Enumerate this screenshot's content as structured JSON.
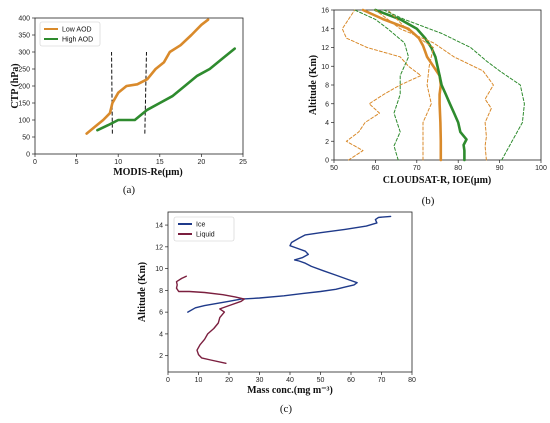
{
  "chart_data": [
    {
      "type": "line",
      "panel_label": "(a)",
      "xlabel": "MODIS-Re(μm)",
      "ylabel": "CTP (hPa)",
      "xlim": [
        0,
        25
      ],
      "ylim": [
        0,
        400
      ],
      "xticks": [
        "0",
        "5",
        "10",
        "15",
        "20",
        "25"
      ],
      "yticks": [
        "0",
        "50",
        "100",
        "150",
        "200",
        "250",
        "300",
        "350",
        "400"
      ],
      "legend_position": "top-left",
      "grid": false,
      "series": [
        {
          "name": "Low AOD",
          "color": "#d98a2b",
          "x": [
            6.2,
            7.2,
            8.2,
            9.0,
            9.3,
            10.0,
            11.0,
            12.3,
            13.5,
            14.5,
            15.5,
            16.2,
            17.5,
            18.8,
            20.0,
            20.8
          ],
          "y": [
            60,
            80,
            100,
            120,
            150,
            180,
            200,
            205,
            220,
            250,
            270,
            300,
            320,
            350,
            380,
            395
          ]
        },
        {
          "name": "High AOD",
          "color": "#2e8b2e",
          "x": [
            7.5,
            8.8,
            10.0,
            12.0,
            13.5,
            15.0,
            16.5,
            18.0,
            19.5,
            21.0,
            22.5,
            24.0
          ],
          "y": [
            70,
            85,
            100,
            100,
            130,
            150,
            170,
            200,
            230,
            250,
            280,
            310
          ]
        }
      ],
      "annotations": [
        {
          "type": "dashed-vline",
          "x": [
            9.3,
            9.2
          ],
          "y": [
            60,
            300
          ]
        },
        {
          "type": "dashed-vline",
          "x": [
            13.2,
            13.4
          ],
          "y": [
            60,
            300
          ]
        }
      ]
    },
    {
      "type": "line",
      "panel_label": "(b)",
      "xlabel": "CLOUDSAT-R, IOE(μm)",
      "ylabel": "Altitude (Km)",
      "xlim": [
        50,
        100
      ],
      "ylim": [
        0,
        16
      ],
      "xticks": [
        "50",
        "60",
        "70",
        "80",
        "90",
        "100"
      ],
      "yticks": [
        "0",
        "2",
        "4",
        "6",
        "8",
        "10",
        "12",
        "14",
        "16"
      ],
      "grid": false,
      "series": [
        {
          "color": "#d98a2b",
          "style": "solid",
          "x": [
            75.8,
            75.8,
            75.7,
            75.5,
            75.5,
            75.8,
            75.5,
            74.0,
            72.5,
            72.0,
            71.5,
            70.5,
            68.0,
            62.0,
            57.0
          ],
          "y": [
            0,
            2,
            4,
            6,
            7,
            8,
            9,
            10,
            11,
            11.6,
            12.2,
            13,
            14,
            15,
            16
          ]
        },
        {
          "color": "#2e8b2e",
          "style": "solid",
          "x": [
            81.5,
            81.5,
            81.3,
            82.0,
            80.5,
            80.0,
            79.0,
            78.0,
            77.0,
            76.0,
            75.5,
            75.0,
            74.5,
            73.5,
            72.0,
            70.0,
            66.0,
            60.0
          ],
          "y": [
            0,
            1,
            1.6,
            2.2,
            3.0,
            4.0,
            5.0,
            6.0,
            7.0,
            8.0,
            9.0,
            10.0,
            11.0,
            12.0,
            13.0,
            14.0,
            15.0,
            16.0
          ]
        },
        {
          "color": "#d98a2b",
          "style": "dashed",
          "x": [
            53.5,
            57.0,
            53.0,
            56.0,
            57.5,
            61.0,
            58.5,
            62.0,
            66.0,
            71.0,
            68.0,
            66.0,
            58.0,
            53.0,
            52.0,
            55.0
          ],
          "y": [
            0,
            1.0,
            2.0,
            3.0,
            4.0,
            5.0,
            6.0,
            7.0,
            8.0,
            9.0,
            10.0,
            11.0,
            12.0,
            13.0,
            14.0,
            16.0
          ]
        },
        {
          "color": "#d98a2b",
          "style": "dashed",
          "x": [
            71.5,
            71.5,
            71.5,
            73.5,
            72.5,
            73.0,
            74.0,
            70.5,
            67.5,
            63.0
          ],
          "y": [
            0,
            2,
            4,
            6,
            8,
            10,
            12,
            13,
            14,
            16
          ]
        },
        {
          "color": "#d98a2b",
          "style": "dashed",
          "x": [
            86.8,
            86.5,
            86.8,
            86.5,
            88.0,
            86.5,
            88.5,
            86.0,
            79.0,
            74.0,
            66.0,
            60.0
          ],
          "y": [
            0,
            1.5,
            2.5,
            4.0,
            5.5,
            6.5,
            8.0,
            9.5,
            11.0,
            12.5,
            14.0,
            16.0
          ]
        },
        {
          "color": "#2e8b2e",
          "style": "dashed",
          "x": [
            65.5,
            64.5,
            66.0,
            64.5,
            66.0,
            66.0,
            68.0,
            67.0,
            63.0,
            60.0,
            55.0
          ],
          "y": [
            0,
            1.5,
            3.0,
            5.0,
            7.0,
            9.0,
            11.0,
            12.5,
            14.0,
            15.0,
            16.0
          ]
        },
        {
          "color": "#2e8b2e",
          "style": "dashed",
          "x": [
            90.5,
            93.0,
            95.5,
            96.0,
            95.0,
            90.0,
            87.0,
            83.0,
            76.0,
            67.0,
            62.0
          ],
          "y": [
            0,
            2.0,
            4.0,
            6.0,
            8.0,
            9.5,
            10.5,
            12.0,
            13.5,
            15.0,
            16.0
          ]
        }
      ]
    },
    {
      "type": "line",
      "panel_label": "(c)",
      "xlabel": "Mass conc.(mg m⁻³)",
      "ylabel": "Altitude (Km)",
      "xlim": [
        0,
        80
      ],
      "ylim": [
        0.5,
        15.2
      ],
      "xticks": [
        "0",
        "10",
        "20",
        "30",
        "40",
        "50",
        "60",
        "70",
        "80"
      ],
      "yticks": [
        "2",
        "4",
        "6",
        "8",
        "10",
        "12",
        "14"
      ],
      "legend_position": "top-left",
      "grid": false,
      "series": [
        {
          "name": "Ice",
          "color": "#1f3a8a",
          "x": [
            6.5,
            9.0,
            12.0,
            16.0,
            20.0,
            24.0,
            30.0,
            38.0,
            44.0,
            50.0,
            55.0,
            58.0,
            61.0,
            62.0,
            59.0,
            55.0,
            51.0,
            47.0,
            45.0,
            43.0,
            41.5,
            44.0,
            46.0,
            45.0,
            42.0,
            40.0,
            40.5,
            43.0,
            45.0,
            50.0,
            58.0,
            65.0,
            68.5,
            68.0,
            69.0,
            73.0
          ],
          "y": [
            6.0,
            6.4,
            6.6,
            6.8,
            7.0,
            7.2,
            7.3,
            7.5,
            7.7,
            7.9,
            8.1,
            8.3,
            8.5,
            8.7,
            9.0,
            9.4,
            9.8,
            10.2,
            10.5,
            10.7,
            10.8,
            11.0,
            11.3,
            11.6,
            11.9,
            12.1,
            12.4,
            12.8,
            13.1,
            13.3,
            13.6,
            13.9,
            14.2,
            14.5,
            14.7,
            14.8
          ]
        },
        {
          "name": "Liquid",
          "color": "#7b1f3f",
          "x": [
            19.0,
            14.0,
            11.0,
            10.0,
            9.5,
            10.5,
            12.0,
            13.0,
            15.0,
            16.5,
            17.0,
            18.5,
            17.0,
            20.0,
            24.0,
            25.0,
            22.0,
            18.0,
            12.0,
            7.0,
            3.5,
            2.8,
            3.0,
            2.8,
            4.5,
            6.0
          ],
          "y": [
            1.3,
            1.6,
            1.8,
            2.1,
            2.5,
            3.0,
            3.5,
            4.0,
            4.5,
            5.0,
            5.5,
            6.0,
            6.3,
            6.6,
            7.0,
            7.2,
            7.4,
            7.6,
            7.8,
            7.9,
            7.9,
            8.2,
            8.5,
            8.8,
            9.1,
            9.3
          ]
        }
      ]
    }
  ]
}
